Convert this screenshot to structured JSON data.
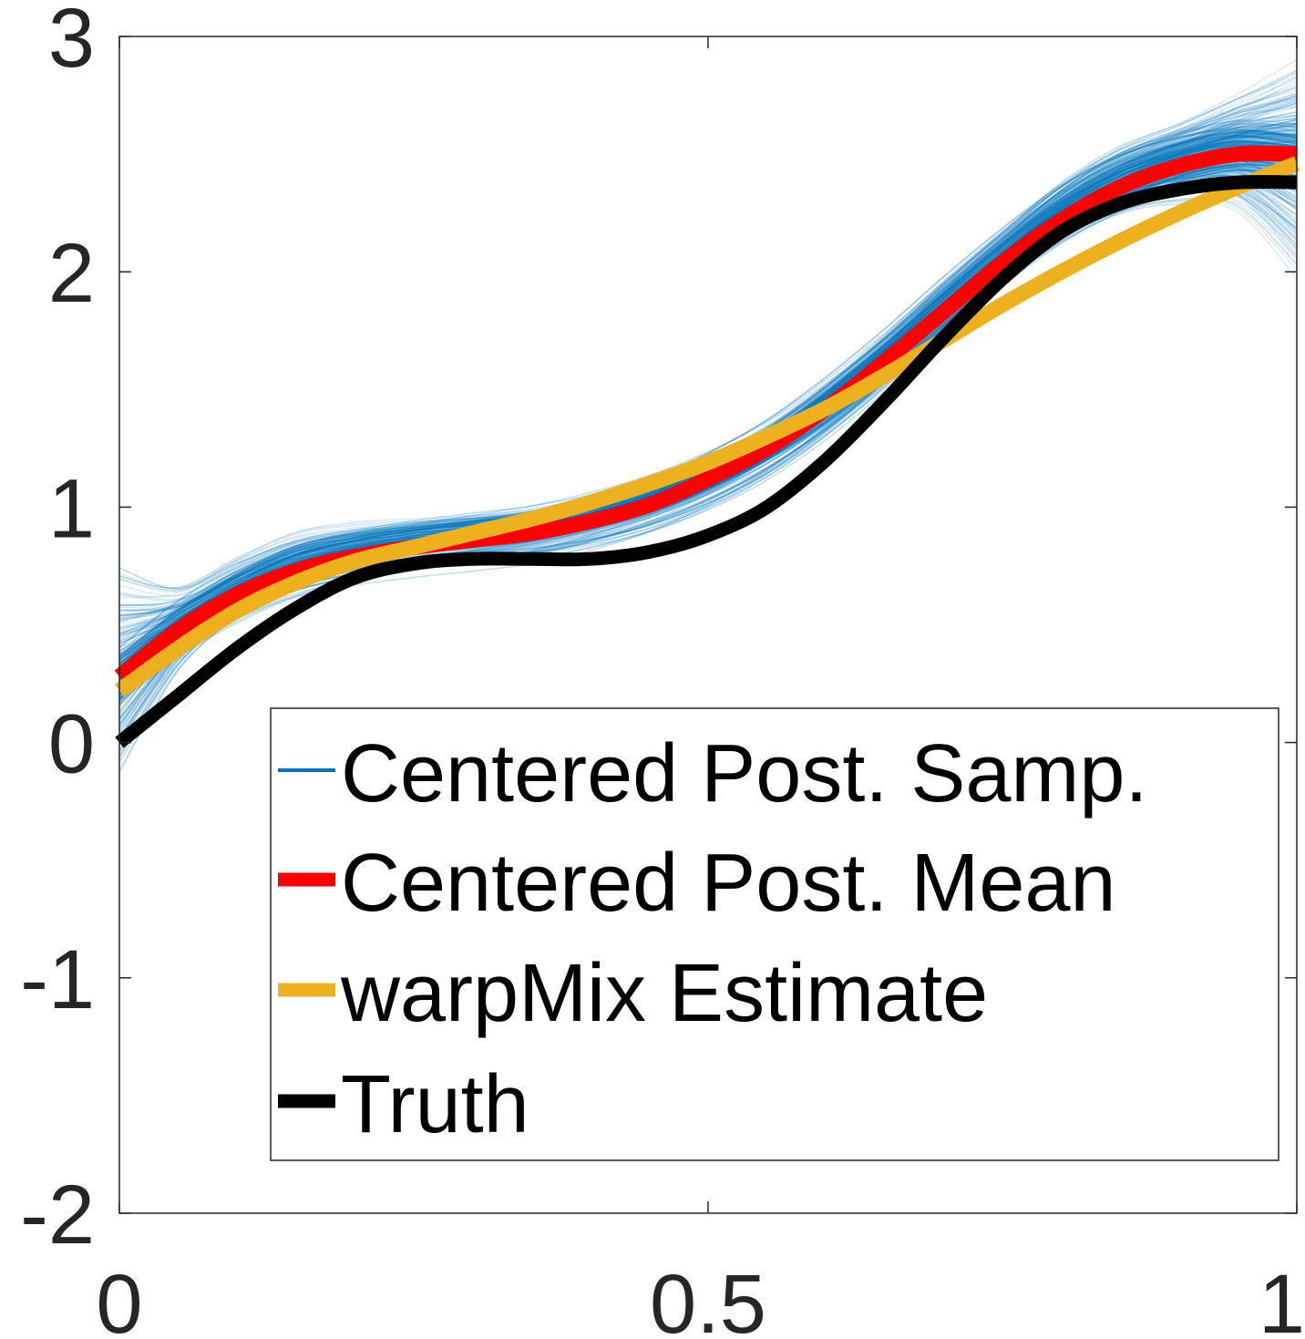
{
  "chart_data": {
    "type": "line",
    "title": "",
    "xlabel": "",
    "ylabel": "",
    "xlim": [
      0,
      1
    ],
    "ylim": [
      -2,
      3
    ],
    "xticks": [
      0,
      0.5,
      1
    ],
    "xtick_labels": [
      "0",
      "0.5",
      "1"
    ],
    "yticks": [
      -2,
      -1,
      0,
      1,
      2,
      3
    ],
    "ytick_labels": [
      "-2",
      "-1",
      "0",
      "1",
      "2",
      "3"
    ],
    "grid": false,
    "legend_position": "lower-right",
    "colors": {
      "samples": "#0072BD",
      "mean": "#FF0000",
      "warpmix": "#EDB120",
      "truth": "#000000"
    },
    "x": [
      0,
      0.05,
      0.1,
      0.15,
      0.2,
      0.25,
      0.3,
      0.35,
      0.4,
      0.45,
      0.5,
      0.55,
      0.6,
      0.65,
      0.7,
      0.75,
      0.8,
      0.85,
      0.9,
      0.95,
      1.0
    ],
    "series": [
      {
        "name": "Centered Post. Samp.",
        "style": "thin-band",
        "values": [
          0.28,
          0.48,
          0.63,
          0.74,
          0.8,
          0.84,
          0.87,
          0.9,
          0.95,
          1.02,
          1.12,
          1.25,
          1.42,
          1.62,
          1.84,
          2.05,
          2.24,
          2.38,
          2.47,
          2.52,
          2.5
        ],
        "band_lower": [
          -0.25,
          0.25,
          0.5,
          0.65,
          0.73,
          0.78,
          0.8,
          0.83,
          0.88,
          0.95,
          1.05,
          1.18,
          1.33,
          1.52,
          1.73,
          1.93,
          2.1,
          2.22,
          2.25,
          2.2,
          1.85
        ],
        "band_upper": [
          0.88,
          0.72,
          0.83,
          0.93,
          0.96,
          0.97,
          0.98,
          1.0,
          1.04,
          1.1,
          1.2,
          1.34,
          1.53,
          1.75,
          1.98,
          2.2,
          2.42,
          2.58,
          2.68,
          2.82,
          3.0
        ]
      },
      {
        "name": "Centered Post. Mean",
        "values": [
          0.28,
          0.48,
          0.63,
          0.73,
          0.79,
          0.83,
          0.86,
          0.89,
          0.94,
          1.01,
          1.12,
          1.25,
          1.42,
          1.62,
          1.83,
          2.04,
          2.22,
          2.36,
          2.45,
          2.5,
          2.5
        ]
      },
      {
        "name": "warpMix Estimate",
        "values": [
          0.22,
          0.4,
          0.56,
          0.68,
          0.77,
          0.83,
          0.89,
          0.95,
          1.02,
          1.1,
          1.19,
          1.3,
          1.42,
          1.56,
          1.71,
          1.86,
          2.0,
          2.13,
          2.25,
          2.36,
          2.46
        ]
      },
      {
        "name": "Truth",
        "values": [
          0.0,
          0.2,
          0.4,
          0.57,
          0.7,
          0.76,
          0.78,
          0.78,
          0.78,
          0.81,
          0.88,
          1.0,
          1.2,
          1.45,
          1.72,
          1.97,
          2.17,
          2.29,
          2.35,
          2.38,
          2.38
        ]
      }
    ]
  }
}
